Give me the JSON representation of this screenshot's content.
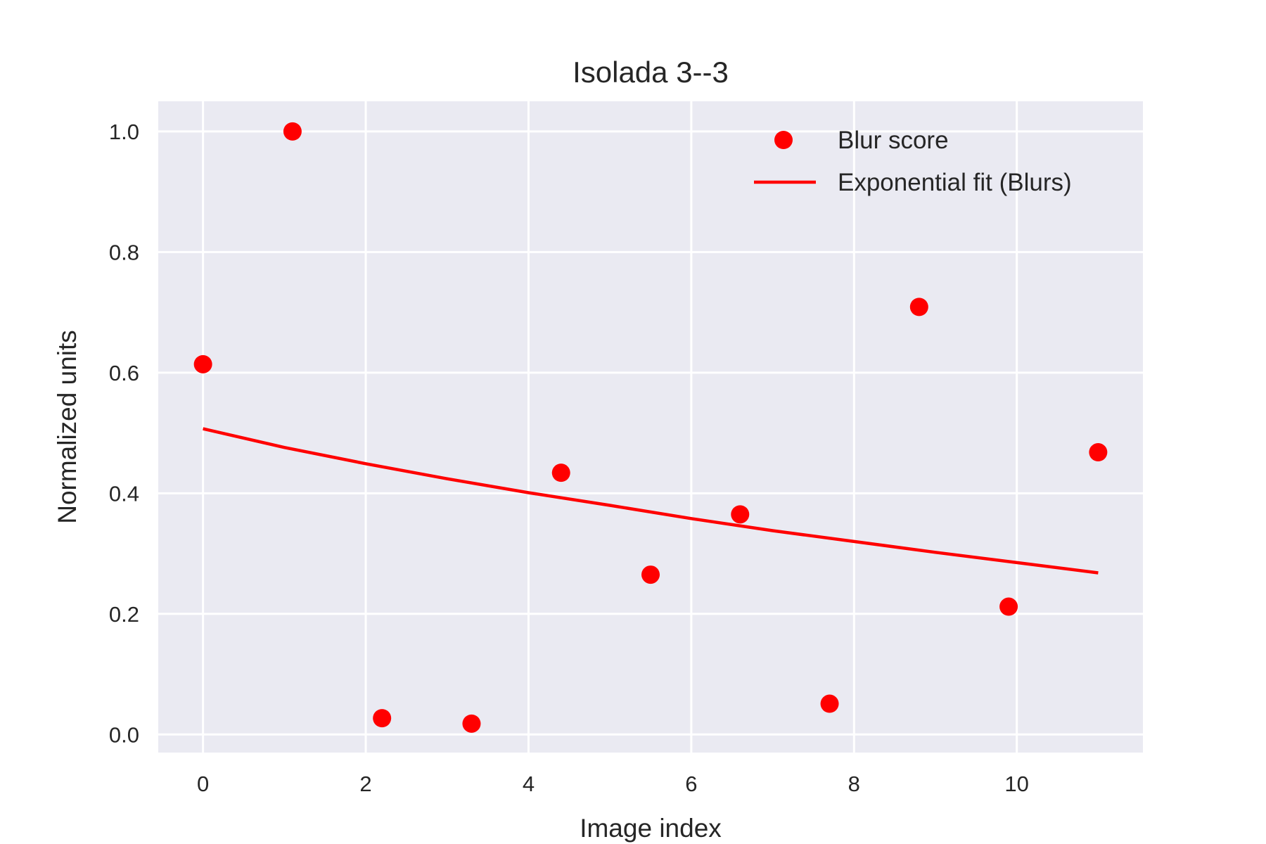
{
  "chart_data": {
    "type": "scatter",
    "title": "Isolada 3--3",
    "xlabel": "Image index",
    "ylabel": "Normalized units",
    "xlim": [
      -0.55,
      11.55
    ],
    "ylim": [
      -0.03,
      1.05
    ],
    "xticks": [
      0,
      2,
      4,
      6,
      8,
      10
    ],
    "xtick_labels": [
      "0",
      "2",
      "4",
      "6",
      "8",
      "10"
    ],
    "yticks": [
      0.0,
      0.2,
      0.4,
      0.6,
      0.8,
      1.0
    ],
    "ytick_labels": [
      "0.0",
      "0.2",
      "0.4",
      "0.6",
      "0.8",
      "1.0"
    ],
    "grid": true,
    "legend_position": "upper right",
    "series": [
      {
        "name": "Blur score",
        "kind": "scatter",
        "color": "#ff0000",
        "x": [
          0,
          1.1,
          2.2,
          3.3,
          4.4,
          5.5,
          6.6,
          7.7,
          8.8,
          9.9,
          11
        ],
        "y": [
          0.614,
          1.0,
          0.027,
          0.018,
          0.434,
          0.265,
          0.365,
          0.051,
          0.709,
          0.212,
          0.468
        ]
      },
      {
        "name": "Exponential fit (Blurs)",
        "kind": "line",
        "color": "#ff0000",
        "x": [
          0,
          1,
          2,
          3,
          4,
          5,
          6,
          7,
          8,
          9,
          10,
          11
        ],
        "y": [
          0.507,
          0.476,
          0.449,
          0.424,
          0.401,
          0.38,
          0.358,
          0.338,
          0.32,
          0.302,
          0.285,
          0.268
        ]
      }
    ]
  },
  "colors": {
    "plot_background": "#eaeaf2",
    "grid": "#ffffff",
    "text": "#262626",
    "series": "#ff0000"
  }
}
